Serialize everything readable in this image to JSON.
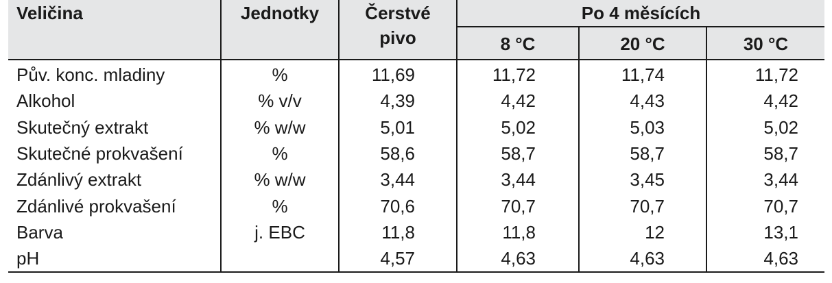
{
  "header": {
    "col_name": "Veličina",
    "col_unit": "Jednotky",
    "col_fresh_line1": "Čerstvé",
    "col_fresh_line2": "pivo",
    "col_group": "Po 4 měsících",
    "col_t1": "8 °C",
    "col_t2": "20 °C",
    "col_t3": "30 °C"
  },
  "rows": [
    {
      "name": "Pův. konc. mladiny",
      "unit": "%",
      "fresh": "11,69",
      "t8": "11,72",
      "t20": "11,74",
      "t30": "11,72"
    },
    {
      "name": "Alkohol",
      "unit": "% v/v",
      "fresh": "4,39",
      "t8": "4,42",
      "t20": "4,43",
      "t30": "4,42"
    },
    {
      "name": "Skutečný extrakt",
      "unit": "% w/w",
      "fresh": "5,01",
      "t8": "5,02",
      "t20": "5,03",
      "t30": "5,02"
    },
    {
      "name": "Skutečné prokvašení",
      "unit": "%",
      "fresh": "58,6",
      "t8": "58,7",
      "t20": "58,7",
      "t30": "58,7"
    },
    {
      "name": "Zdánlivý extrakt",
      "unit": "% w/w",
      "fresh": "3,44",
      "t8": "3,44",
      "t20": "3,45",
      "t30": "3,44"
    },
    {
      "name": "Zdánlivé prokvašení",
      "unit": "%",
      "fresh": "70,6",
      "t8": "70,7",
      "t20": "70,7",
      "t30": "70,7"
    },
    {
      "name": "Barva",
      "unit": "j. EBC",
      "fresh": "11,8",
      "t8": "11,8",
      "t20": "12",
      "t30": "13,1"
    },
    {
      "name": "pH",
      "unit": "",
      "fresh": "4,57",
      "t8": "4,63",
      "t20": "4,63",
      "t30": "4,63"
    }
  ]
}
